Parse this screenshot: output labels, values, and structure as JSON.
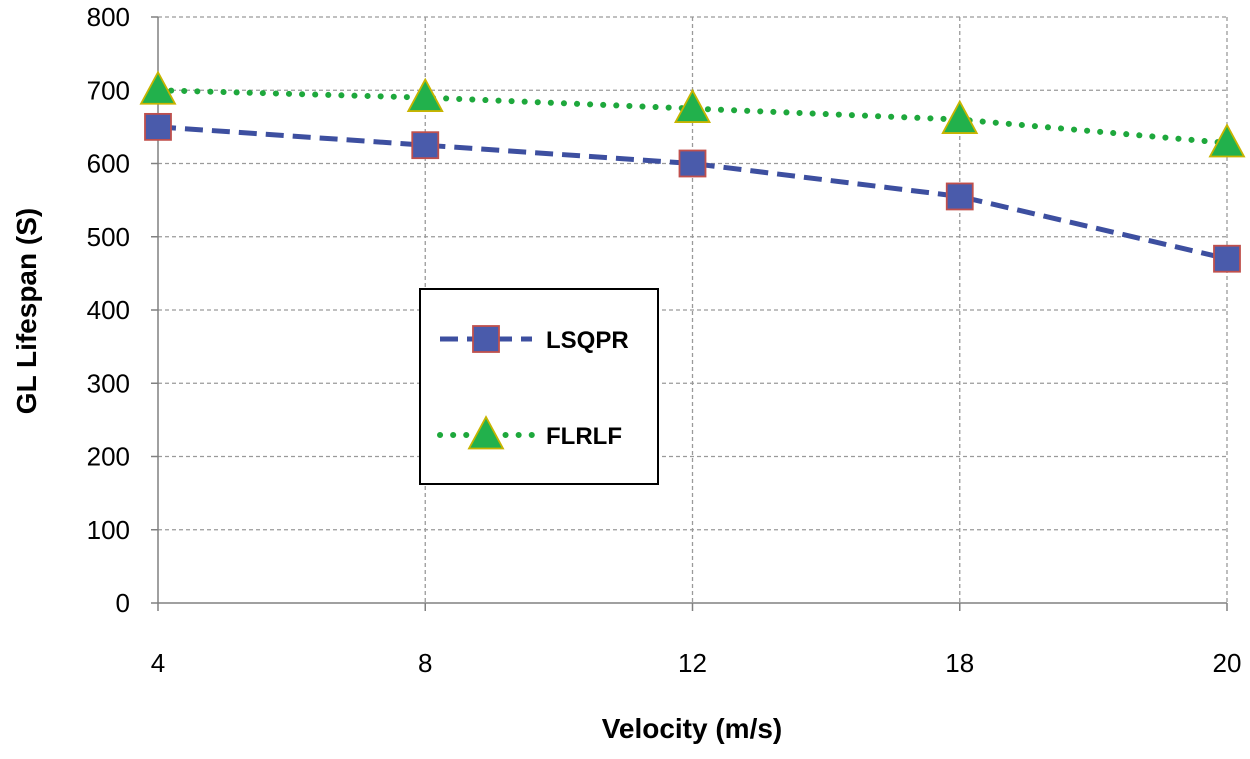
{
  "chart_data": {
    "type": "line",
    "title": "",
    "xlabel": "Velocity (m/s)",
    "ylabel": "GL Lifespan (S)",
    "categories": [
      "4",
      "8",
      "12",
      "18",
      "20"
    ],
    "ylim": [
      0,
      800
    ],
    "yticks": [
      0,
      100,
      200,
      300,
      400,
      500,
      600,
      700,
      800
    ],
    "grid": true,
    "legend_position": "center-left",
    "series": [
      {
        "name": "LSQPR",
        "values": [
          650,
          625,
          600,
          555,
          470
        ],
        "color": "#3d4fa0",
        "marker": "square",
        "marker_fill": "#4a5bab",
        "marker_edge": "#c0504d",
        "line_style": "dashed"
      },
      {
        "name": "FLRLF",
        "values": [
          700,
          690,
          675,
          660,
          628
        ],
        "color": "#1ea83c",
        "marker": "triangle",
        "marker_fill": "#22b14c",
        "marker_edge": "#c8b400",
        "line_style": "dotted"
      }
    ]
  }
}
